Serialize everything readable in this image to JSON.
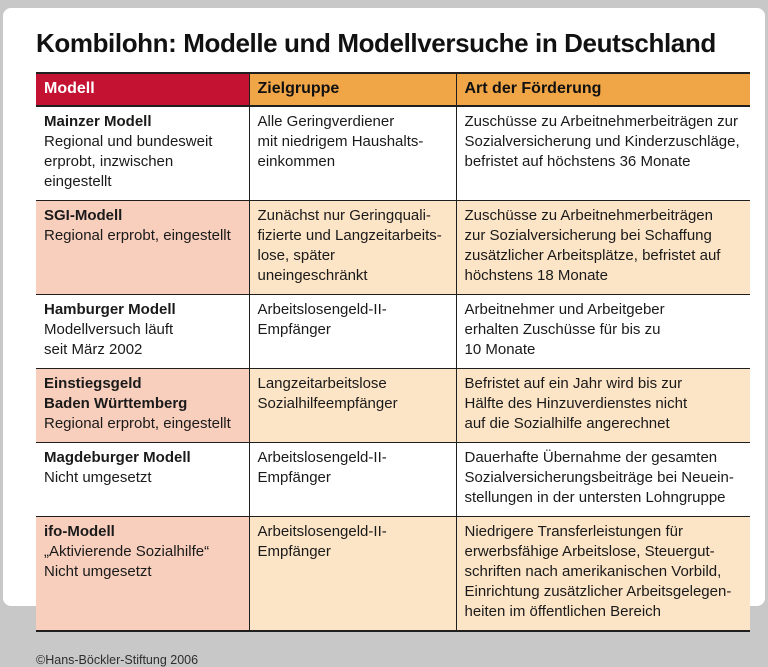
{
  "title": "Kombilohn: Modelle und Modellversuche in Deutschland",
  "footer": "©Hans-Böckler-Stiftung 2006",
  "colors": {
    "header_red": "#c41332",
    "header_orange": "#f0a546",
    "row_salmon": "#f8cfbd",
    "row_cream": "#fce4c6",
    "grid_line": "#1f1f1f",
    "frame_gray": "#c8c8c8",
    "header_text_on_red": "#ffffff",
    "header_text_on_orange": "#111111"
  },
  "chart_data": {
    "type": "table",
    "title": "Kombilohn: Modelle und Modellversuche in Deutschland",
    "columns": [
      "Modell",
      "Zielgruppe",
      "Art der Förderung"
    ],
    "rows": [
      {
        "shaded": false,
        "name_lines": [
          "Mainzer Modell"
        ],
        "status_lines": [
          "Regional und bundesweit",
          "erprobt, inzwischen eingestellt"
        ],
        "zielgruppe_lines": [
          "Alle Geringverdiener",
          "mit niedrigem Haushalts-",
          "einkommen"
        ],
        "foerderung_lines": [
          "Zuschüsse zu Arbeitnehmerbeiträgen zur",
          "Sozialversicherung und Kinderzuschläge,",
          "befristet auf höchstens 36 Monate"
        ]
      },
      {
        "shaded": true,
        "name_lines": [
          "SGI-Modell"
        ],
        "status_lines": [
          "Regional erprobt, eingestellt"
        ],
        "zielgruppe_lines": [
          "Zunächst nur Geringquali-",
          "fizierte und Langzeitarbeits-",
          "lose, später uneingeschränkt"
        ],
        "foerderung_lines": [
          "Zuschüsse zu Arbeitnehmerbeiträgen",
          "zur Sozialversicherung bei Schaffung",
          "zusätzlicher Arbeitsplätze, befristet auf",
          "höchstens 18 Monate"
        ]
      },
      {
        "shaded": false,
        "name_lines": [
          "Hamburger Modell"
        ],
        "status_lines": [
          "Modellversuch läuft",
          "seit März 2002"
        ],
        "zielgruppe_lines": [
          "Arbeitslosengeld-II-",
          "Empfänger"
        ],
        "foerderung_lines": [
          "Arbeitnehmer und Arbeitgeber",
          "erhalten Zuschüsse für bis zu",
          "10 Monate"
        ]
      },
      {
        "shaded": true,
        "name_lines": [
          "Einstiegsgeld",
          "Baden Württemberg"
        ],
        "status_lines": [
          "Regional erprobt, eingestellt"
        ],
        "zielgruppe_lines": [
          "Langzeitarbeitslose",
          "Sozialhilfeempfänger"
        ],
        "foerderung_lines": [
          "Befristet auf ein Jahr wird bis zur",
          "Hälfte des Hinzuverdienstes nicht",
          "auf die Sozialhilfe angerechnet"
        ]
      },
      {
        "shaded": false,
        "name_lines": [
          "Magdeburger Modell"
        ],
        "status_lines": [
          "Nicht umgesetzt"
        ],
        "zielgruppe_lines": [
          "Arbeitslosengeld-II-",
          "Empfänger"
        ],
        "foerderung_lines": [
          "Dauerhafte Übernahme der gesamten",
          "Sozialversicherungsbeiträge bei Neuein-",
          "stellungen in der untersten Lohngruppe"
        ]
      },
      {
        "shaded": true,
        "name_lines": [
          "ifo-Modell"
        ],
        "status_lines": [
          "„Aktivierende Sozialhilfe“",
          "Nicht umgesetzt"
        ],
        "zielgruppe_lines": [
          "Arbeitslosengeld-II-",
          "Empfänger"
        ],
        "foerderung_lines": [
          "Niedrigere Transferleistungen für",
          "erwerbsfähige Arbeitslose, Steuergut-",
          "schriften nach amerikanischen Vorbild,",
          "Einrichtung zusätzlicher Arbeitsgelegen-",
          "heiten im öffentlichen Bereich"
        ]
      }
    ]
  }
}
